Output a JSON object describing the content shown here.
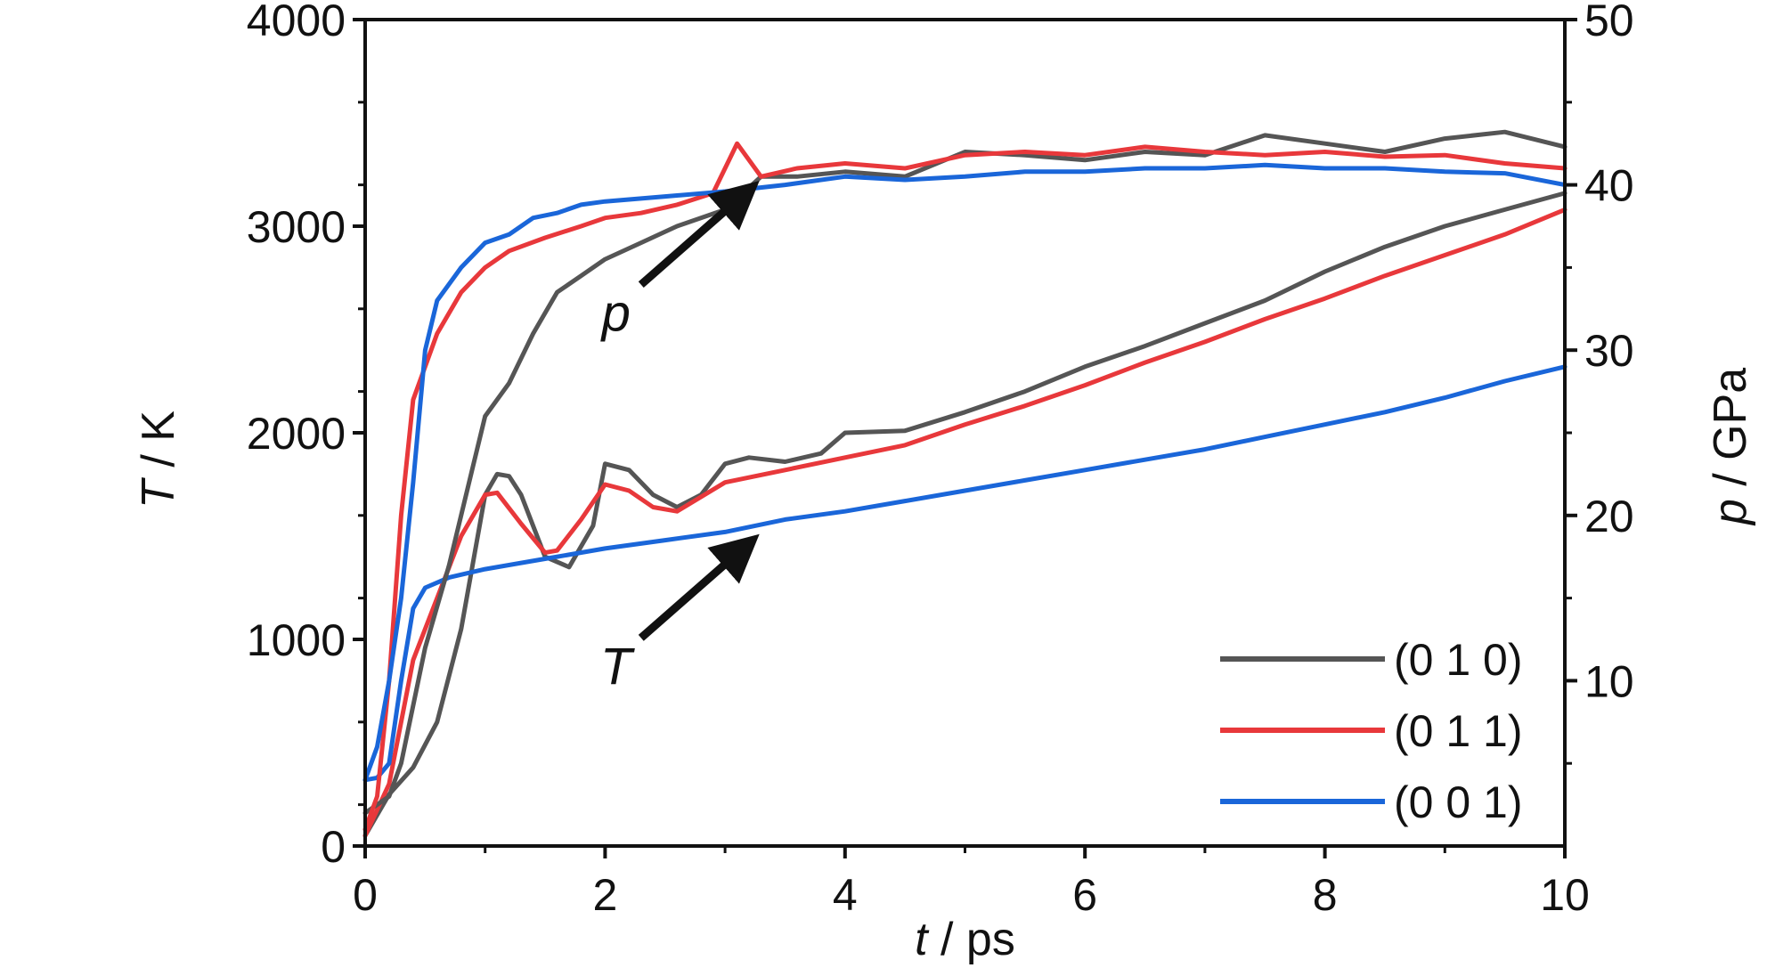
{
  "chart_data": {
    "type": "line",
    "xlabel": {
      "var": "t",
      "unit": " / ps"
    },
    "ylabel_left": {
      "var": "T",
      "unit": " / K"
    },
    "ylabel_right": {
      "var": "p",
      "unit": " / GPa"
    },
    "xlim": [
      0,
      10
    ],
    "ylim_left": [
      0,
      4000
    ],
    "ylim_right": [
      0,
      50
    ],
    "x_ticks": [
      0,
      2,
      4,
      6,
      8,
      10
    ],
    "y_left_ticks": [
      0,
      1000,
      2000,
      3000,
      4000
    ],
    "y_right_ticks": [
      10,
      20,
      30,
      40,
      50
    ],
    "grid": false,
    "legend_position": "bottom-right",
    "annotations": [
      {
        "label": "p",
        "points_to_axis": "right",
        "target": [
          3.25,
          40.0
        ]
      },
      {
        "label": "T",
        "points_to_axis": "left",
        "target": [
          3.25,
          1490
        ]
      }
    ],
    "colors": {
      "(0 1 0)": "#555555",
      "(0 1 1)": "#e8383b",
      "(0 0 1)": "#1a66d9"
    },
    "series": [
      {
        "name": "(0 1 0)",
        "quantity": "T",
        "axis": "left",
        "color": "#555555",
        "x": [
          0,
          0.2,
          0.4,
          0.6,
          0.8,
          1.0,
          1.1,
          1.2,
          1.3,
          1.5,
          1.7,
          1.9,
          2.0,
          2.2,
          2.4,
          2.6,
          2.8,
          3.0,
          3.2,
          3.5,
          3.8,
          4.0,
          4.5,
          5.0,
          5.5,
          6.0,
          6.5,
          7.0,
          7.5,
          8.0,
          8.5,
          9.0,
          9.5,
          10.0
        ],
        "y": [
          50,
          250,
          380,
          600,
          1050,
          1700,
          1800,
          1790,
          1700,
          1400,
          1350,
          1550,
          1850,
          1820,
          1700,
          1640,
          1700,
          1850,
          1880,
          1860,
          1900,
          2000,
          2010,
          2100,
          2200,
          2320,
          2420,
          2530,
          2640,
          2780,
          2900,
          3000,
          3080,
          3160
        ]
      },
      {
        "name": "(0 1 1)",
        "quantity": "T",
        "axis": "left",
        "color": "#e8383b",
        "x": [
          0,
          0.2,
          0.4,
          0.6,
          0.8,
          1.0,
          1.1,
          1.3,
          1.5,
          1.6,
          1.8,
          2.0,
          2.2,
          2.4,
          2.6,
          3.0,
          3.5,
          4.0,
          4.5,
          5.0,
          5.5,
          6.0,
          6.5,
          7.0,
          7.5,
          8.0,
          8.5,
          9.0,
          9.5,
          10.0
        ],
        "y": [
          50,
          300,
          900,
          1200,
          1500,
          1700,
          1710,
          1560,
          1420,
          1430,
          1580,
          1750,
          1720,
          1640,
          1620,
          1760,
          1820,
          1880,
          1940,
          2040,
          2130,
          2230,
          2340,
          2440,
          2550,
          2650,
          2760,
          2860,
          2960,
          3080
        ]
      },
      {
        "name": "(0 0 1)",
        "quantity": "T",
        "axis": "left",
        "color": "#1a66d9",
        "x": [
          0,
          0.1,
          0.2,
          0.3,
          0.4,
          0.5,
          0.7,
          1.0,
          1.5,
          2.0,
          2.5,
          3.0,
          3.5,
          4.0,
          4.5,
          5.0,
          5.5,
          6.0,
          6.5,
          7.0,
          7.5,
          8.0,
          8.5,
          9.0,
          9.5,
          10.0
        ],
        "y": [
          320,
          330,
          400,
          800,
          1150,
          1250,
          1300,
          1340,
          1390,
          1440,
          1480,
          1520,
          1580,
          1620,
          1670,
          1720,
          1770,
          1820,
          1870,
          1920,
          1980,
          2040,
          2100,
          2170,
          2250,
          2320
        ]
      },
      {
        "name": "(0 1 0)",
        "quantity": "p",
        "axis": "right",
        "color": "#555555",
        "x": [
          0,
          0.2,
          0.3,
          0.5,
          0.7,
          0.9,
          1.0,
          1.2,
          1.4,
          1.6,
          1.8,
          2.0,
          2.3,
          2.6,
          3.0,
          3.3,
          3.6,
          4.0,
          4.5,
          5.0,
          5.5,
          6.0,
          6.5,
          7.0,
          7.5,
          8.0,
          8.5,
          9.0,
          9.5,
          10.0
        ],
        "y": [
          2,
          3,
          5,
          12,
          17,
          23,
          26,
          28,
          31,
          33.5,
          34.5,
          35.5,
          36.5,
          37.5,
          38.5,
          40.5,
          40.5,
          40.8,
          40.5,
          42.0,
          41.8,
          41.5,
          42.0,
          41.8,
          43.0,
          42.5,
          42.0,
          42.8,
          43.2,
          42.3
        ]
      },
      {
        "name": "(0 1 1)",
        "quantity": "p",
        "axis": "right",
        "color": "#e8383b",
        "x": [
          0,
          0.1,
          0.2,
          0.3,
          0.4,
          0.6,
          0.8,
          1.0,
          1.2,
          1.5,
          1.8,
          2.0,
          2.3,
          2.6,
          2.9,
          3.1,
          3.3,
          3.6,
          4.0,
          4.5,
          5.0,
          5.5,
          6.0,
          6.5,
          7.0,
          7.5,
          8.0,
          8.5,
          9.0,
          9.5,
          10.0
        ],
        "y": [
          1,
          3,
          10,
          20,
          27,
          31,
          33.5,
          35,
          36,
          36.8,
          37.5,
          38,
          38.3,
          38.8,
          39.5,
          42.5,
          40.5,
          41.0,
          41.3,
          41.0,
          41.8,
          42.0,
          41.8,
          42.3,
          42.0,
          41.8,
          42.0,
          41.7,
          41.8,
          41.3,
          41.0
        ]
      },
      {
        "name": "(0 0 1)",
        "quantity": "p",
        "axis": "right",
        "color": "#1a66d9",
        "x": [
          0,
          0.1,
          0.2,
          0.3,
          0.4,
          0.5,
          0.6,
          0.8,
          1.0,
          1.2,
          1.4,
          1.6,
          1.8,
          2.0,
          2.5,
          3.0,
          3.5,
          4.0,
          4.5,
          5.0,
          5.5,
          6.0,
          6.5,
          7.0,
          7.5,
          8.0,
          8.5,
          9.0,
          9.5,
          10.0
        ],
        "y": [
          4,
          6,
          10,
          15,
          22,
          30,
          33,
          35,
          36.5,
          37,
          38,
          38.3,
          38.8,
          39,
          39.3,
          39.6,
          40.0,
          40.5,
          40.3,
          40.5,
          40.8,
          40.8,
          41.0,
          41.0,
          41.2,
          41.0,
          41.0,
          40.8,
          40.7,
          40.0
        ]
      }
    ],
    "legend": [
      {
        "label": "(0 1 0)",
        "color": "#555555"
      },
      {
        "label": "(0 1 1)",
        "color": "#e8383b"
      },
      {
        "label": "(0 0 1)",
        "color": "#1a66d9"
      }
    ]
  }
}
